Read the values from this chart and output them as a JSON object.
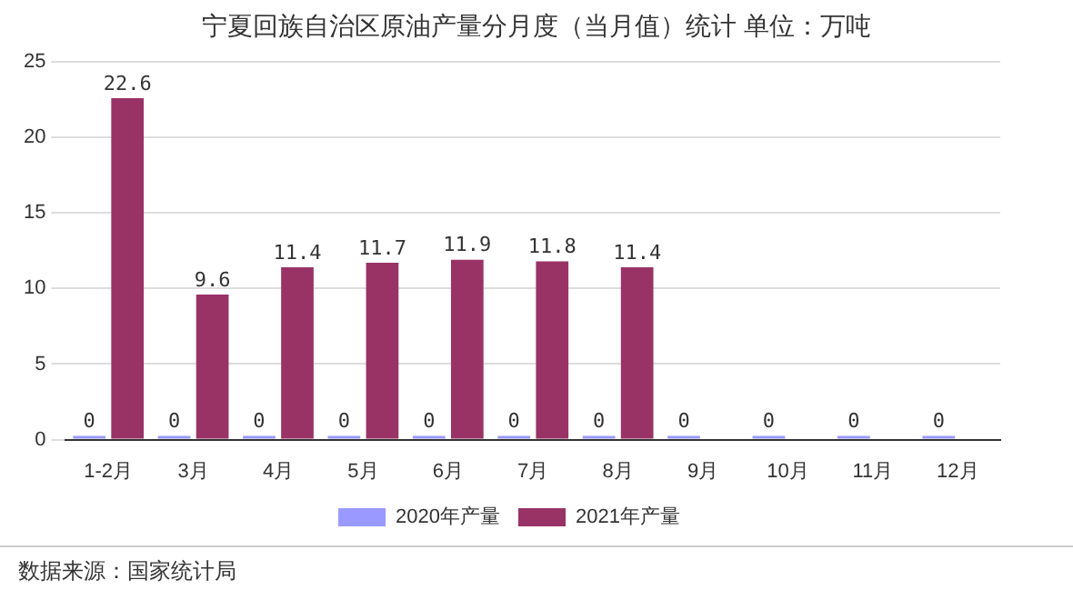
{
  "chart_data": {
    "type": "bar",
    "title": "宁夏回族自治区原油产量分月度（当月值）统计 单位：万吨",
    "categories": [
      "1-2月",
      "3月",
      "4月",
      "5月",
      "6月",
      "7月",
      "8月",
      "9月",
      "10月",
      "11月",
      "12月"
    ],
    "series": [
      {
        "name": "2020年产量",
        "color": "#9999ff",
        "values": [
          0,
          0,
          0,
          0,
          0,
          0,
          0,
          0,
          0,
          0,
          0
        ]
      },
      {
        "name": "2021年产量",
        "color": "#993366",
        "values": [
          22.6,
          9.6,
          11.4,
          11.7,
          11.9,
          11.8,
          11.4,
          null,
          null,
          null,
          null
        ]
      }
    ],
    "ylim": [
      0,
      25
    ],
    "yticks": [
      0,
      5,
      10,
      15,
      20,
      25
    ],
    "grid": "y",
    "legend": "bottom",
    "data_labels": true,
    "annotations": [
      "数据来源：国家统计局"
    ]
  }
}
